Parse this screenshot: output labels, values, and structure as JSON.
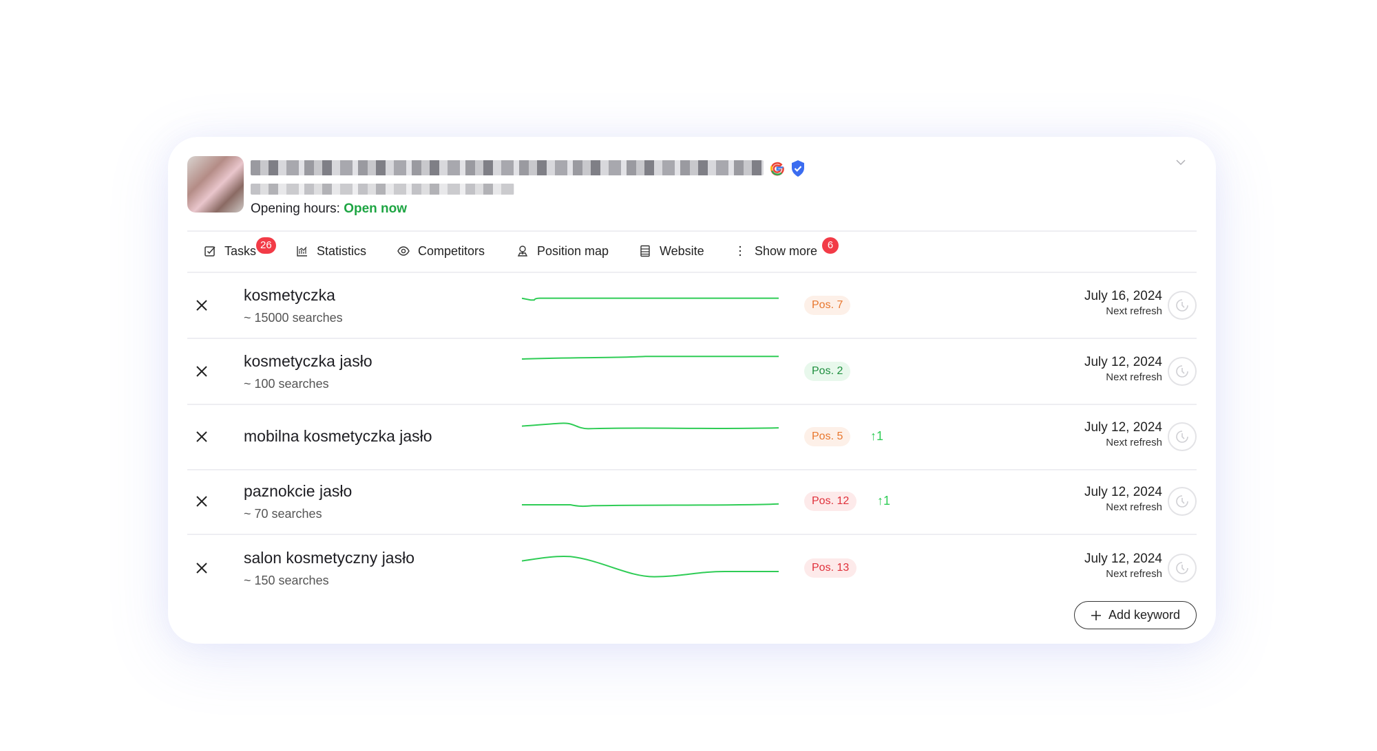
{
  "header": {
    "opening_hours_label": "Opening hours:",
    "opening_hours_status": "Open now",
    "icons": [
      "google-icon",
      "verified-shield-icon",
      "chevron-down-icon"
    ]
  },
  "tabs": [
    {
      "label": "Tasks",
      "icon": "checkbox-icon",
      "badge": "26"
    },
    {
      "label": "Statistics",
      "icon": "chart-icon"
    },
    {
      "label": "Competitors",
      "icon": "eye-icon"
    },
    {
      "label": "Position map",
      "icon": "map-pin-icon"
    },
    {
      "label": "Website",
      "icon": "website-icon"
    },
    {
      "label": "Show more",
      "icon": "more-vertical-icon",
      "badge": "6"
    }
  ],
  "keywords": [
    {
      "keyword": "kosmetyczka",
      "searches": "~ 15000 searches",
      "position": "Pos. 7",
      "position_color": "#e8772e",
      "delta": "",
      "date": "July 16, 2024",
      "next_refresh": "Next refresh"
    },
    {
      "keyword": "kosmetyczka jasło",
      "searches": "~ 100 searches",
      "position": "Pos. 2",
      "position_color": "#1e8e3e",
      "delta": "",
      "date": "July 12, 2024",
      "next_refresh": "Next refresh"
    },
    {
      "keyword": "mobilna kosmetyczka jasło",
      "searches": "",
      "position": "Pos. 5",
      "position_color": "#e8772e",
      "delta": "↑1",
      "date": "July 12, 2024",
      "next_refresh": "Next refresh"
    },
    {
      "keyword": "paznokcie jasło",
      "searches": "~ 70 searches",
      "position": "Pos. 12",
      "position_color": "#e0303a",
      "delta": "↑1",
      "date": "July 12, 2024",
      "next_refresh": "Next refresh"
    },
    {
      "keyword": "salon kosmetyczny jasło",
      "searches": "~ 150 searches",
      "position": "Pos. 13",
      "position_color": "#e0303a",
      "delta": "",
      "date": "July 12, 2024",
      "next_refresh": "Next refresh"
    }
  ],
  "add_keyword_label": "Add keyword",
  "colors": {
    "open": "#1ea543",
    "badge": "#f23b47",
    "sparkline": "#2ecc55",
    "delta_up": "#2ecc55"
  }
}
